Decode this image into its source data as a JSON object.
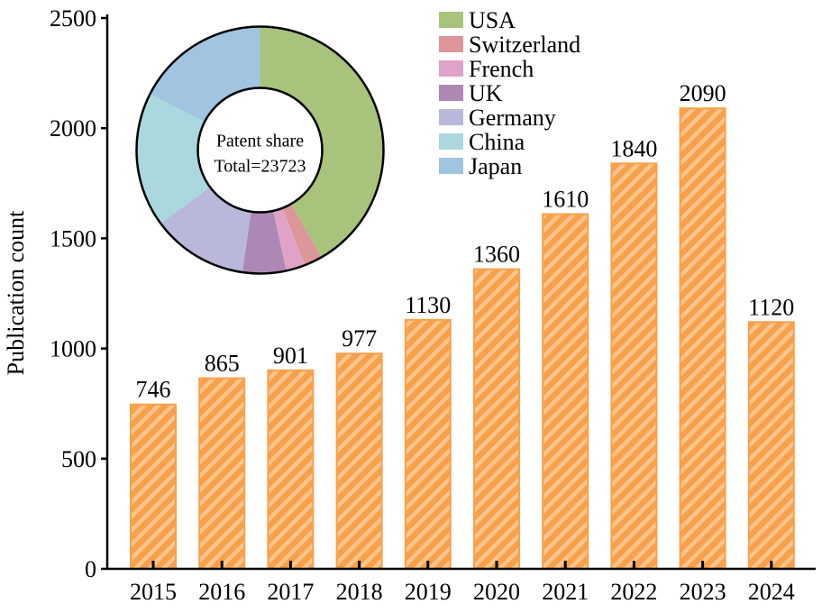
{
  "chart_data": [
    {
      "type": "bar",
      "title": "",
      "xlabel": "",
      "ylabel": "Publication count",
      "ylim": [
        0,
        2500
      ],
      "yticks": [
        0,
        500,
        1000,
        1500,
        2000,
        2500
      ],
      "categories": [
        "2015",
        "2016",
        "2017",
        "2018",
        "2019",
        "2020",
        "2021",
        "2022",
        "2023",
        "2024"
      ],
      "values": [
        746,
        865,
        901,
        977,
        1130,
        1360,
        1610,
        1840,
        2090,
        1120
      ],
      "data_labels": [
        "746",
        "865",
        "901",
        "977",
        "1130",
        "1360",
        "1610",
        "1840",
        "2090",
        "1120"
      ],
      "bar_color": "#f9a04a",
      "hatch_color": "#fcc68e",
      "grid": false
    },
    {
      "type": "pie",
      "donut": true,
      "center_text": [
        "Patent share",
        "Total=23723"
      ],
      "legend_placement": "top-right",
      "slices": [
        {
          "label": "USA",
          "share": 41.7,
          "color": "#a8c47c"
        },
        {
          "label": "Switzerland",
          "share": 2.4,
          "color": "#dc9598"
        },
        {
          "label": "French",
          "share": 2.5,
          "color": "#e0a2c6"
        },
        {
          "label": "UK",
          "share": 5.7,
          "color": "#ad88b5"
        },
        {
          "label": "Germany",
          "share": 12.6,
          "color": "#b9b8da"
        },
        {
          "label": "China",
          "share": 17.6,
          "color": "#aad8de"
        },
        {
          "label": "Japan",
          "share": 17.5,
          "color": "#a1c4e0"
        }
      ]
    }
  ]
}
